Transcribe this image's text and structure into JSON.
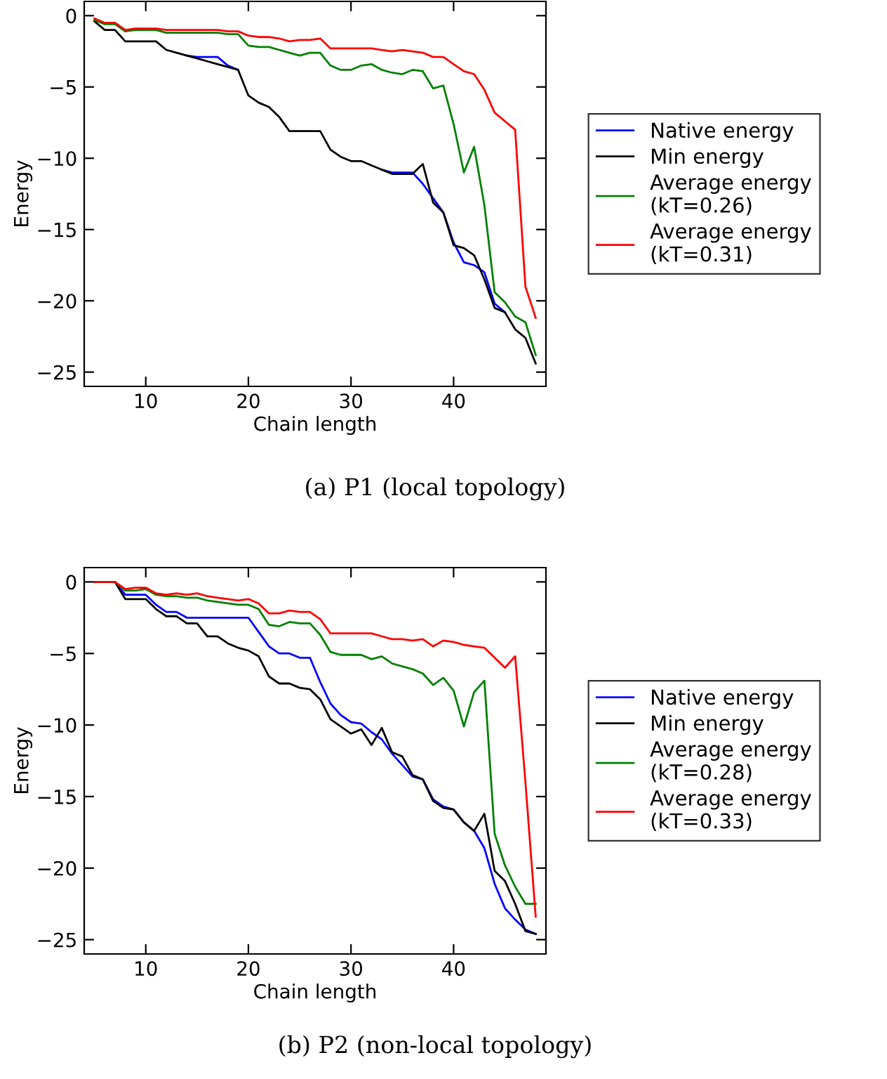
{
  "chart_data": [
    {
      "type": "line",
      "xlabel": "Chain length",
      "ylabel": "Energy",
      "annotations": [
        "(a) P1 (local topology)"
      ],
      "xlim": [
        4,
        49
      ],
      "ylim": [
        -26,
        1
      ],
      "xticks": [
        10,
        20,
        30,
        40
      ],
      "yticks": [
        0,
        {
          "value": -5,
          "label": "−5"
        },
        {
          "value": -10,
          "label": "−10"
        },
        {
          "value": -15,
          "label": "−15"
        },
        {
          "value": -20,
          "label": "−20"
        },
        {
          "value": -25,
          "label": "−25"
        }
      ],
      "grid": false,
      "legend": "right",
      "marker": "none",
      "line_style": "solid",
      "x": [
        5,
        6,
        7,
        8,
        9,
        10,
        11,
        12,
        13,
        14,
        15,
        16,
        17,
        18,
        19,
        20,
        21,
        22,
        23,
        24,
        25,
        26,
        27,
        28,
        29,
        30,
        31,
        32,
        33,
        34,
        35,
        36,
        37,
        38,
        39,
        40,
        41,
        42,
        43,
        44,
        45,
        46,
        47,
        48
      ],
      "series": [
        {
          "name": "Native energy",
          "color": "#0000ff",
          "values": [
            null,
            null,
            null,
            null,
            null,
            null,
            null,
            null,
            null,
            -2.8,
            -2.9,
            -2.9,
            -2.9,
            -3.5,
            -3.8,
            null,
            null,
            null,
            null,
            null,
            null,
            null,
            null,
            null,
            null,
            null,
            null,
            null,
            -10.8,
            -11,
            -11,
            -11,
            -11.8,
            -12.8,
            -13.8,
            -15.9,
            -17.3,
            -17.5,
            -18,
            -20.2,
            -20.8,
            null,
            null,
            null
          ]
        },
        {
          "name": "Min energy",
          "color": "#000000",
          "values": [
            -0.4,
            -1,
            -1,
            -1.8,
            -1.8,
            -1.8,
            -1.8,
            -2.4,
            -2.6,
            -2.8,
            -3,
            -3.2,
            -3.4,
            -3.6,
            -3.8,
            -5.6,
            -6.1,
            -6.4,
            -7.1,
            -8.1,
            -8.1,
            -8.1,
            -8.1,
            -9.4,
            -9.9,
            -10.2,
            -10.2,
            -10.5,
            -10.8,
            -11.1,
            -11.1,
            -11.1,
            -10.4,
            -13.1,
            -13.8,
            -16.1,
            -16.3,
            -16.8,
            -18.5,
            -20.5,
            -20.8,
            -22,
            -22.6,
            -24.4
          ]
        },
        {
          "name": "Average energy\n(kT=0.26)",
          "color": "#008000",
          "values": [
            -0.3,
            -0.6,
            -0.6,
            -1.1,
            -1,
            -1,
            -1,
            -1.2,
            -1.2,
            -1.2,
            -1.2,
            -1.2,
            -1.2,
            -1.3,
            -1.3,
            -2.1,
            -2.2,
            -2.2,
            -2.4,
            -2.6,
            -2.8,
            -2.6,
            -2.6,
            -3.5,
            -3.8,
            -3.8,
            -3.5,
            -3.4,
            -3.8,
            -4,
            -4.1,
            -3.8,
            -3.9,
            -5.1,
            -4.9,
            -7.6,
            -11,
            -9.2,
            -13.3,
            -19.4,
            -20.1,
            -21.1,
            -21.5,
            -23.8
          ]
        },
        {
          "name": "Average energy\n(kT=0.31)",
          "color": "#ff0000",
          "values": [
            -0.2,
            -0.5,
            -0.5,
            -1,
            -0.9,
            -0.9,
            -0.9,
            -1,
            -1,
            -1,
            -1,
            -1,
            -1,
            -1.1,
            -1.1,
            -1.4,
            -1.5,
            -1.5,
            -1.6,
            -1.8,
            -1.7,
            -1.7,
            -1.6,
            -2.3,
            -2.3,
            -2.3,
            -2.3,
            -2.3,
            -2.4,
            -2.5,
            -2.4,
            -2.5,
            -2.6,
            -2.9,
            -2.9,
            -3.4,
            -3.9,
            -4.1,
            -5.2,
            -6.8,
            -7.4,
            -8,
            -19,
            -21.2
          ]
        }
      ]
    },
    {
      "type": "line",
      "xlabel": "Chain length",
      "ylabel": "Energy",
      "annotations": [
        "(b) P2 (non-local topology)"
      ],
      "xlim": [
        4,
        49
      ],
      "ylim": [
        -26,
        1
      ],
      "xticks": [
        10,
        20,
        30,
        40
      ],
      "yticks": [
        0,
        {
          "value": -5,
          "label": "−5"
        },
        {
          "value": -10,
          "label": "−10"
        },
        {
          "value": -15,
          "label": "−15"
        },
        {
          "value": -20,
          "label": "−20"
        },
        {
          "value": -25,
          "label": "−25"
        }
      ],
      "grid": false,
      "legend": "right",
      "marker": "none",
      "line_style": "solid",
      "x": [
        5,
        6,
        7,
        8,
        9,
        10,
        11,
        12,
        13,
        14,
        15,
        16,
        17,
        18,
        19,
        20,
        21,
        22,
        23,
        24,
        25,
        26,
        27,
        28,
        29,
        30,
        31,
        32,
        33,
        34,
        35,
        36,
        37,
        38,
        39,
        40,
        41,
        42,
        43,
        44,
        45,
        46,
        47,
        48
      ],
      "series": [
        {
          "name": "Native energy",
          "color": "#0000ff",
          "values": [
            0,
            0,
            0,
            -0.9,
            -0.9,
            -0.9,
            -1.6,
            -2.1,
            -2.1,
            -2.5,
            -2.5,
            -2.5,
            -2.5,
            -2.5,
            -2.5,
            -2.5,
            -3.5,
            -4.5,
            -5,
            -5,
            -5.3,
            -5.3,
            -7,
            -8.5,
            -9.3,
            -9.8,
            -9.9,
            -10.5,
            -11,
            -12,
            -12.8,
            -13.6,
            -13.8,
            -15.2,
            -15.7,
            -15.9,
            -16.8,
            -17.4,
            -18.6,
            -21.1,
            -22.8,
            -23.6,
            -24.3,
            -24.6
          ]
        },
        {
          "name": "Min energy",
          "color": "#000000",
          "values": [
            0,
            0,
            0,
            -1.2,
            -1.2,
            -1.2,
            -1.9,
            -2.4,
            -2.4,
            -2.9,
            -2.9,
            -3.8,
            -3.8,
            -4.3,
            -4.6,
            -4.8,
            -5.2,
            -6.6,
            -7.1,
            -7.1,
            -7.4,
            -7.5,
            -8.2,
            -9.6,
            -10.1,
            -10.6,
            -10.3,
            -11.4,
            -10.2,
            -11.9,
            -12.2,
            -13.5,
            -13.8,
            -15.3,
            -15.8,
            -15.9,
            -16.8,
            -17.4,
            -16.2,
            -20.2,
            -20.9,
            -22.5,
            -24.4,
            -24.6
          ]
        },
        {
          "name": "Average energy\n(kT=0.28)",
          "color": "#008000",
          "values": [
            0,
            0,
            0,
            -0.6,
            -0.6,
            -0.5,
            -0.9,
            -1,
            -1,
            -1.1,
            -1.1,
            -1.3,
            -1.4,
            -1.5,
            -1.6,
            -1.6,
            -1.9,
            -3,
            -3.1,
            -2.8,
            -2.9,
            -2.9,
            -3.7,
            -4.9,
            -5.1,
            -5.1,
            -5.1,
            -5.4,
            -5.2,
            -5.7,
            -5.9,
            -6.1,
            -6.4,
            -7.2,
            -6.7,
            -7.6,
            -10.1,
            -7.7,
            -6.9,
            -17.6,
            -19.8,
            -21.3,
            -22.5,
            -22.5
          ]
        },
        {
          "name": "Average energy\n(kT=0.33)",
          "color": "#ff0000",
          "values": [
            0,
            0,
            0,
            -0.5,
            -0.4,
            -0.4,
            -0.8,
            -0.9,
            -0.8,
            -0.9,
            -0.8,
            -1,
            -1.1,
            -1.2,
            -1.3,
            -1.2,
            -1.5,
            -2.2,
            -2.2,
            -2,
            -2.1,
            -2.1,
            -2.6,
            -3.6,
            -3.6,
            -3.6,
            -3.6,
            -3.6,
            -3.8,
            -4,
            -4,
            -4.1,
            -4,
            -4.5,
            -4.1,
            -4.2,
            -4.4,
            -4.5,
            -4.6,
            -5.3,
            -6,
            -5.2,
            -14,
            -23.4
          ]
        }
      ]
    }
  ]
}
